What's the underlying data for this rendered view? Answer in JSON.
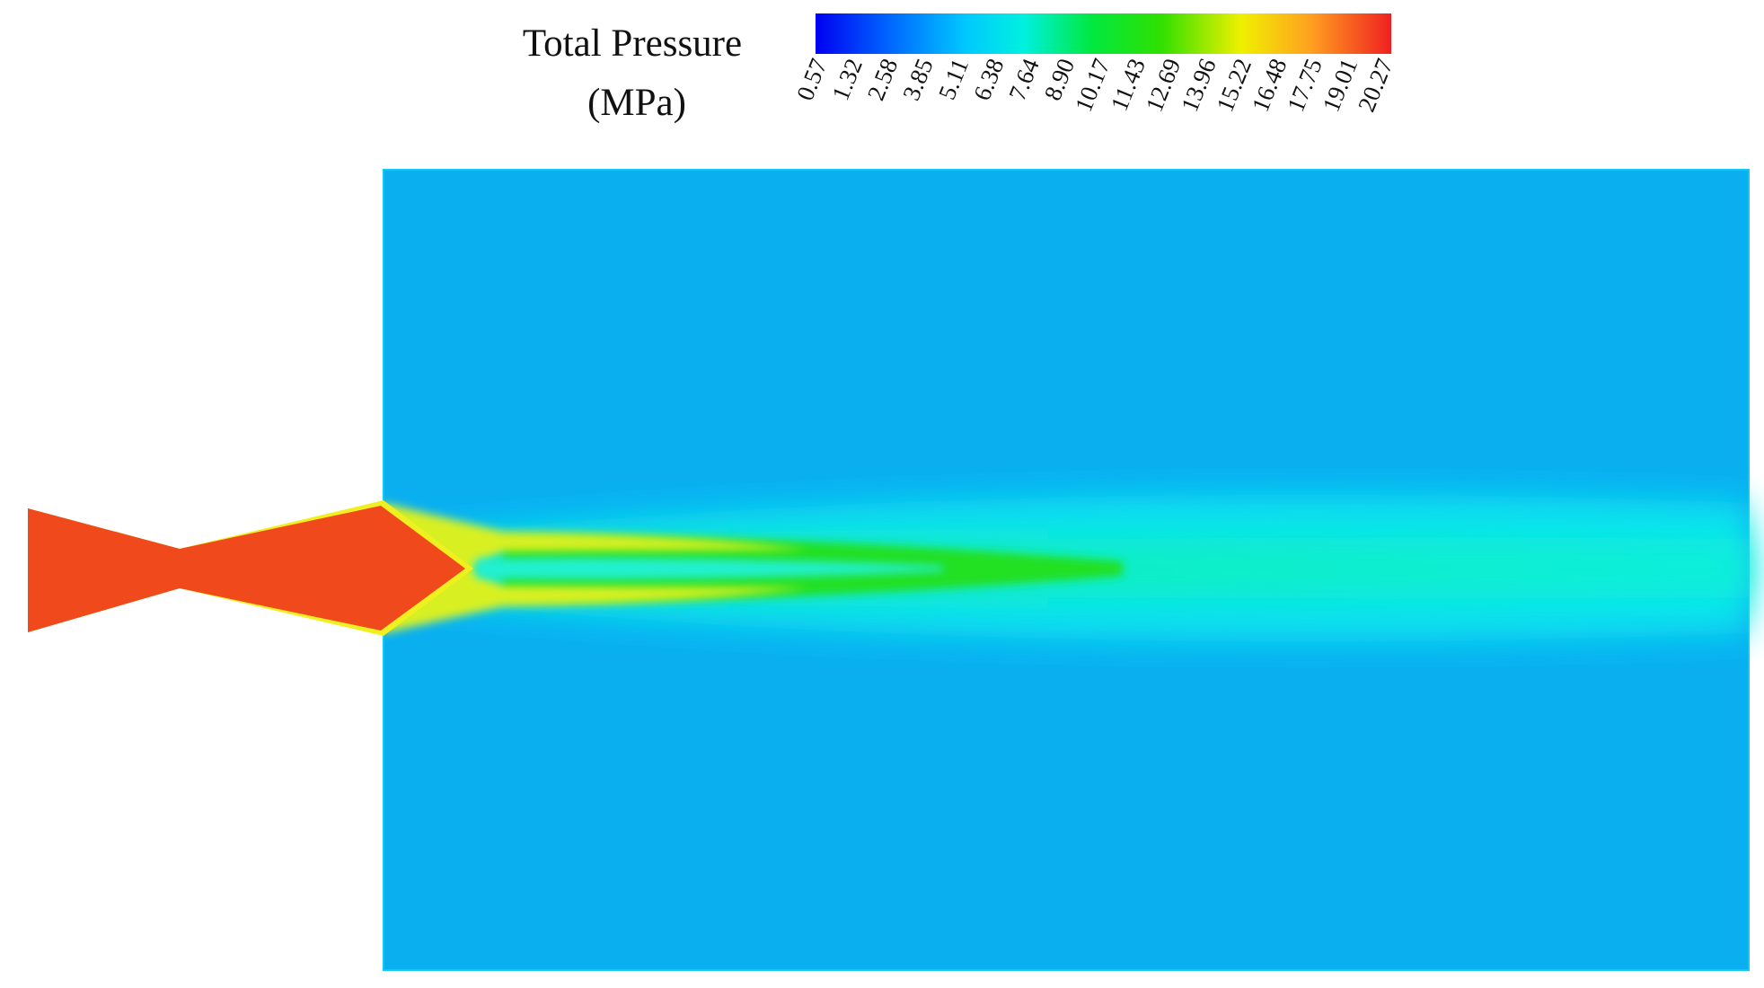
{
  "colorbar": {
    "title": [
      "Total Pressure",
      "(MPa)"
    ],
    "ticks": [
      "0.57",
      "1.32",
      "2.58",
      "3.85",
      "5.11",
      "6.38",
      "7.64",
      "8.90",
      "10.17",
      "11.43",
      "12.69",
      "13.96",
      "15.22",
      "16.48",
      "17.75",
      "19.01",
      "20.27"
    ]
  }
}
